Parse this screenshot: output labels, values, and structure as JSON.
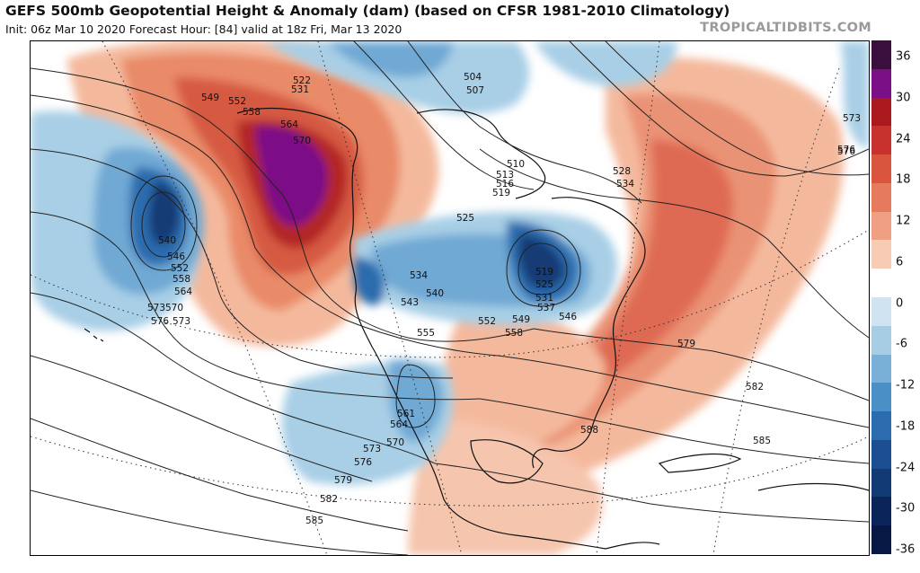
{
  "header": {
    "title": "GEFS 500mb Geopotential Height & Anomaly (dam) (based on CFSR 1981-2010 Climatology)",
    "subtitle": "Init: 06z Mar 10 2020   Forecast Hour: [84]   valid at 18z Fri, Mar 13 2020",
    "brand": "TROPICALTIDBITS.COM"
  },
  "colorbar": {
    "labels": [
      "36",
      "30",
      "24",
      "18",
      "12",
      "6",
      "0",
      "-6",
      "-12",
      "-18",
      "-24",
      "-30",
      "-36"
    ],
    "colors": [
      "#3b0f3d",
      "#7a0f86",
      "#a9191e",
      "#c7312e",
      "#d9553d",
      "#e67a5c",
      "#efa083",
      "#f8cbb4",
      "#ffffff",
      "#cfe3f0",
      "#a6cde4",
      "#78b0d7",
      "#4a8fc5",
      "#2a6cae",
      "#1b4f92",
      "#123a75",
      "#0b255b",
      "#061843"
    ]
  },
  "map": {
    "contour_labels": [
      "522",
      "531",
      "504",
      "507",
      "549",
      "552",
      "558",
      "564",
      "570",
      "510",
      "513",
      "516",
      "519",
      "525",
      "528",
      "534",
      "540",
      "546",
      "552",
      "558",
      "564",
      "570",
      "573",
      "576",
      "573",
      "576",
      "534",
      "543",
      "540",
      "519",
      "525",
      "531",
      "537",
      "546",
      "549",
      "552",
      "558",
      "555",
      "561",
      "564",
      "570",
      "573",
      "576",
      "579",
      "582",
      "585",
      "588",
      "579",
      "582",
      "585",
      "573",
      "576"
    ]
  }
}
